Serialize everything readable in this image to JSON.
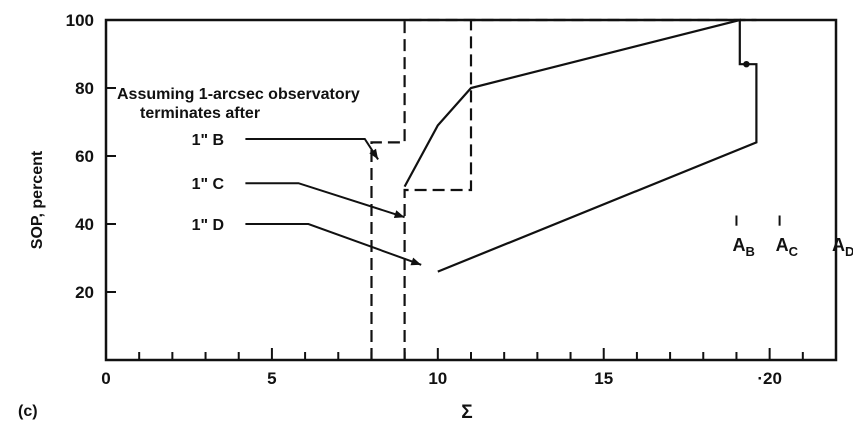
{
  "chart_data": {
    "type": "line",
    "panel_label": "(c)",
    "xlabel": "Σ",
    "ylabel": "SOP, percent",
    "xlim": [
      0,
      22
    ],
    "ylim": [
      0,
      100
    ],
    "x_ticks": [
      0,
      5,
      10,
      15,
      20
    ],
    "x_tick_labels": [
      "0",
      "5",
      "10",
      "15",
      "·20"
    ],
    "y_ticks": [
      20,
      40,
      60,
      80,
      100
    ],
    "y_tick_labels": [
      "20",
      "40",
      "60",
      "80",
      "100"
    ],
    "grid": false,
    "annotation": {
      "line1": "Assuming 1-arcsec observatory",
      "line2": "terminates after"
    },
    "series": [
      {
        "name": "1\" B",
        "style": "dashed",
        "x": [
          8.0,
          8.0,
          9.0,
          9.0,
          19.6
        ],
        "y": [
          0,
          64,
          64,
          100,
          100
        ]
      },
      {
        "name": "1\" C",
        "style": "dashed",
        "x": [
          9.0,
          9.0,
          11.0,
          11.0
        ],
        "y": [
          0,
          50,
          50,
          100
        ]
      },
      {
        "name": "1\" D",
        "style": "solid",
        "x": [
          10.0,
          19.6,
          19.6,
          19.1,
          19.1,
          11.0,
          11.0,
          10.0,
          10.0,
          9.0
        ],
        "y": [
          26,
          64,
          87,
          87,
          100,
          80,
          80,
          69,
          69,
          51
        ]
      }
    ],
    "pointers": [
      {
        "label": "1\" B",
        "label_at": [
          3.8,
          65
        ],
        "path_x": [
          4.2,
          7.8,
          8.2
        ],
        "path_y": [
          65,
          65,
          59
        ]
      },
      {
        "label": "1\" C",
        "label_at": [
          3.8,
          52
        ],
        "path_x": [
          4.2,
          5.8,
          9.0
        ],
        "path_y": [
          52,
          52,
          42
        ]
      },
      {
        "label": "1\" D",
        "label_at": [
          3.8,
          40
        ],
        "path_x": [
          4.2,
          6.1,
          9.5
        ],
        "path_y": [
          40,
          40,
          28
        ]
      }
    ],
    "markers": [
      {
        "label": "A",
        "sub": "B",
        "x": 19.0
      },
      {
        "label": "A",
        "sub": "C",
        "x": 20.3
      },
      {
        "label": "A",
        "sub": "D",
        "x": 22.0
      }
    ]
  }
}
